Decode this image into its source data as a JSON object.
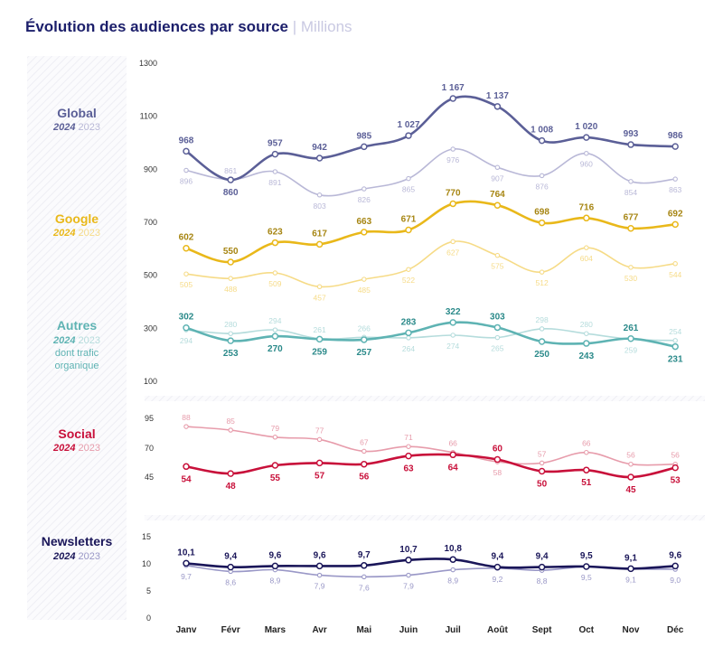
{
  "title": "Évolution des audiences par source",
  "title_separator": "|",
  "subtitle": "Millions",
  "chart_data": {
    "type": "line",
    "categories": [
      "Janv",
      "Févr",
      "Mars",
      "Avr",
      "Mai",
      "Juin",
      "Juil",
      "Août",
      "Sept",
      "Oct",
      "Nov",
      "Déc"
    ],
    "year_current": "2024",
    "year_previous": "2023",
    "panels": [
      {
        "id": "top",
        "yticks": [
          "1300",
          "1100",
          "900",
          "700",
          "500",
          "300",
          "100"
        ],
        "ylim": [
          100,
          1300
        ],
        "groups": [
          {
            "name": "Global",
            "color": "#5b5f97",
            "color_prev": "#b9b8d7",
            "series_2024": [
              968,
              860,
              957,
              942,
              985,
              1027,
              1167,
              1137,
              1008,
              1020,
              993,
              986
            ],
            "series_2023": [
              896,
              861,
              891,
              803,
              826,
              865,
              976,
              907,
              876,
              960,
              854,
              863
            ],
            "labels_2024": [
              "968",
              "860",
              "957",
              "942",
              "985",
              "1 027",
              "1 167",
              "1 137",
              "1 008",
              "1 020",
              "993",
              "986"
            ],
            "labels_2023": [
              "896",
              "861",
              "891",
              "803",
              "826",
              "865",
              "976",
              "907",
              "876",
              "960",
              "854",
              "863"
            ]
          },
          {
            "name": "Google",
            "color": "#e9b81a",
            "color_prev": "#f6db87",
            "label_color": "#a68512",
            "series_2024": [
              602,
              550,
              623,
              617,
              663,
              671,
              770,
              764,
              698,
              716,
              677,
              692
            ],
            "series_2023": [
              505,
              488,
              509,
              457,
              485,
              522,
              627,
              575,
              512,
              604,
              530,
              544
            ],
            "labels_2024": [
              "602",
              "550",
              "623",
              "617",
              "663",
              "671",
              "770",
              "764",
              "698",
              "716",
              "677",
              "692"
            ],
            "labels_2023": [
              "505",
              "488",
              "509",
              "457",
              "485",
              "522",
              "627",
              "575",
              "512",
              "604",
              "530",
              "544"
            ]
          },
          {
            "name": "Autres",
            "note": "dont trafic organique",
            "color": "#5eb3b3",
            "color_prev": "#b5dcdc",
            "label_color": "#2b8a8a",
            "series_2024": [
              302,
              253,
              270,
              259,
              257,
              283,
              322,
              303,
              250,
              243,
              261,
              231
            ],
            "series_2023": [
              294,
              280,
              294,
              261,
              266,
              264,
              274,
              265,
              298,
              280,
              259,
              254
            ],
            "labels_2024": [
              "302",
              "253",
              "270",
              "259",
              "257",
              "283",
              "322",
              "303",
              "250",
              "243",
              "261",
              "231"
            ],
            "labels_2023": [
              "294",
              "280",
              "294",
              "261",
              "266",
              "264",
              "274",
              "265",
              "298",
              "280",
              "259",
              "254"
            ]
          }
        ]
      },
      {
        "id": "social",
        "yticks": [
          "95",
          "70",
          "45"
        ],
        "ylim": [
          20,
          100
        ],
        "groups": [
          {
            "name": "Social",
            "color": "#c8103a",
            "color_prev": "#e79cab",
            "series_2024": [
              54,
              48,
              55,
              57,
              56,
              63,
              64,
              60,
              50,
              51,
              45,
              53
            ],
            "series_2023": [
              88,
              85,
              79,
              77,
              67,
              71,
              66,
              58,
              57,
              66,
              56,
              56
            ],
            "labels_2024": [
              "54",
              "48",
              "55",
              "57",
              "56",
              "63",
              "64",
              "60",
              "50",
              "51",
              "45",
              "53"
            ],
            "labels_2023": [
              "88",
              "85",
              "79",
              "77",
              "67",
              "71",
              "66",
              "58",
              "57",
              "66",
              "56",
              "56"
            ]
          }
        ]
      },
      {
        "id": "newsletters",
        "yticks": [
          "15",
          "10",
          "5",
          "0"
        ],
        "ylim": [
          0,
          15
        ],
        "groups": [
          {
            "name": "Newsletters",
            "color": "#1a1659",
            "color_prev": "#9a98c7",
            "series_2024": [
              10.1,
              9.4,
              9.6,
              9.6,
              9.7,
              10.7,
              10.8,
              9.4,
              9.4,
              9.5,
              9.1,
              9.6
            ],
            "series_2023": [
              9.7,
              8.6,
              8.9,
              7.9,
              7.6,
              7.9,
              8.9,
              9.2,
              8.8,
              9.5,
              9.1,
              9.0
            ],
            "labels_2024": [
              "10,1",
              "9,4",
              "9,6",
              "9,6",
              "9,7",
              "10,7",
              "10,8",
              "9,4",
              "9,4",
              "9,5",
              "9,1",
              "9,6"
            ],
            "labels_2023": [
              "9,7",
              "8,6",
              "8,9",
              "7,9",
              "7,6",
              "7,9",
              "8,9",
              "9,2",
              "8,8",
              "9,5",
              "9,1",
              "9,0"
            ]
          }
        ]
      }
    ]
  }
}
